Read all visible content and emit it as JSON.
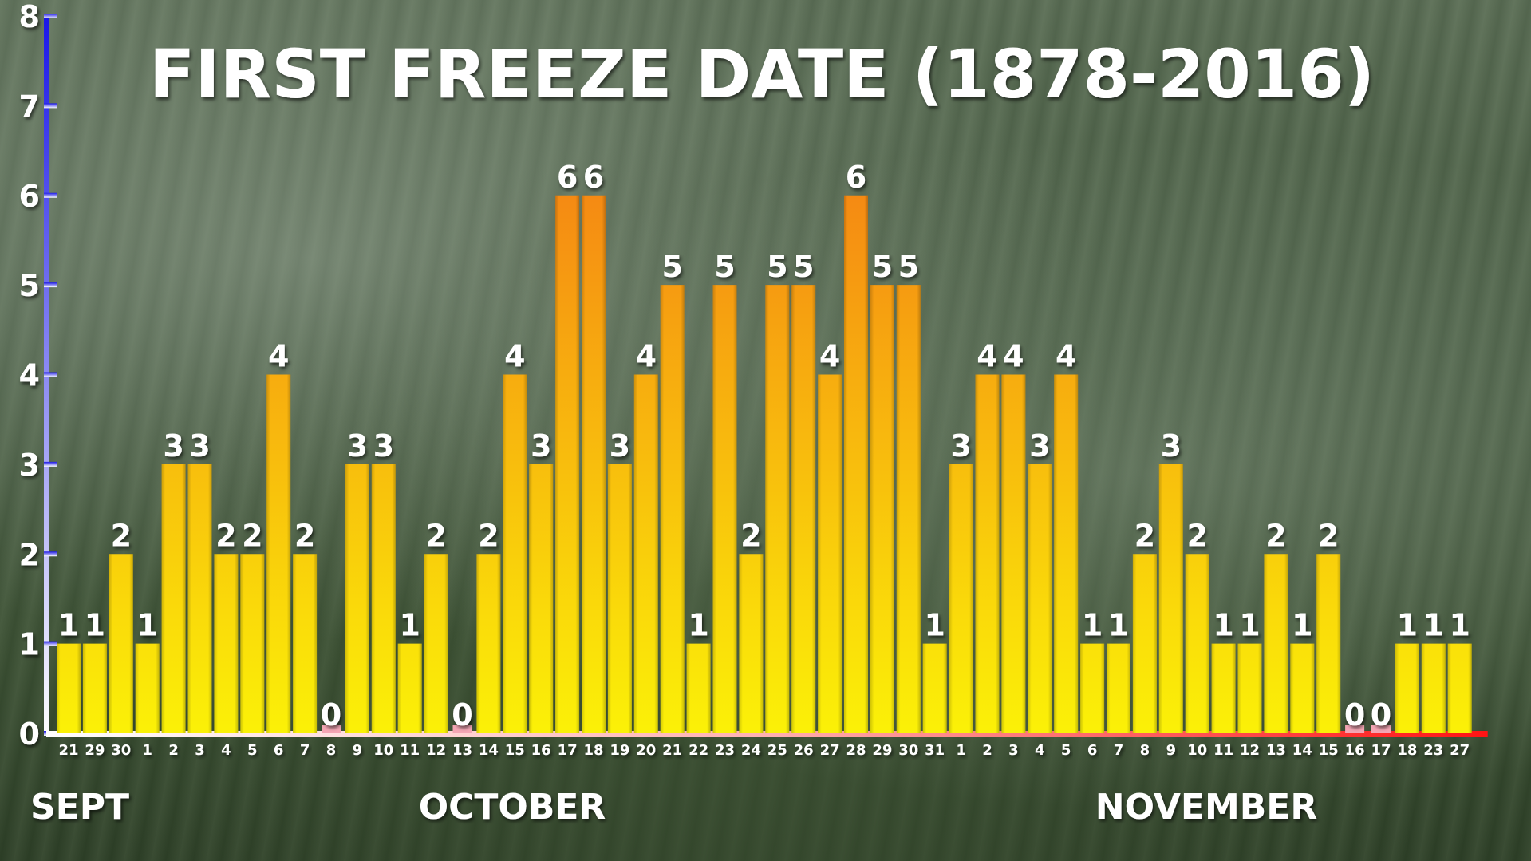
{
  "chart_data": {
    "type": "bar",
    "title": "FIRST FREEZE DATE (1878-2016)",
    "xlabel": "",
    "ylabel": "",
    "ylim": [
      0,
      8
    ],
    "yticks": [
      "0",
      "1",
      "2",
      "3",
      "4",
      "5",
      "6",
      "7",
      "8"
    ],
    "grid": false,
    "months": [
      {
        "label": "SEPT",
        "start_index": 0
      },
      {
        "label": "OCTOBER",
        "start_index": 4
      },
      {
        "label": "NOVEMBER",
        "start_index": 35
      }
    ],
    "categories": [
      "21",
      "29",
      "30",
      "1",
      "2",
      "3",
      "4",
      "5",
      "6",
      "7",
      "8",
      "9",
      "10",
      "11",
      "12",
      "13",
      "14",
      "15",
      "16",
      "17",
      "18",
      "19",
      "20",
      "21",
      "22",
      "23",
      "24",
      "25",
      "26",
      "27",
      "28",
      "29",
      "30",
      "31",
      "1",
      "2",
      "3",
      "4",
      "5",
      "6",
      "7",
      "8",
      "9",
      "10",
      "11",
      "12",
      "13",
      "14",
      "15",
      "16",
      "17",
      "18",
      "23",
      "27"
    ],
    "values": [
      1,
      1,
      2,
      1,
      3,
      3,
      2,
      2,
      4,
      2,
      0,
      3,
      3,
      1,
      2,
      0,
      2,
      4,
      3,
      6,
      6,
      3,
      4,
      5,
      1,
      5,
      2,
      5,
      5,
      4,
      6,
      5,
      5,
      1,
      3,
      4,
      4,
      3,
      4,
      1,
      1,
      2,
      3,
      2,
      1,
      1,
      2,
      1,
      2,
      0,
      0,
      1,
      1,
      1
    ],
    "value_labels": [
      "1",
      "1",
      "2",
      "1",
      "3",
      "3",
      "2",
      "2",
      "4",
      "2",
      "0",
      "3",
      "3",
      "1",
      "2",
      "0",
      "2",
      "4",
      "3",
      "6",
      "6",
      "3",
      "4",
      "5",
      "1",
      "5",
      "2",
      "5",
      "5",
      "4",
      "6",
      "5",
      "5",
      "1",
      "3",
      "4",
      "4",
      "3",
      "4",
      "1",
      "1",
      "2",
      "3",
      "2",
      "1",
      "1",
      "2",
      "1",
      "2",
      "0",
      "0",
      "1",
      "1",
      "1"
    ],
    "colors": {
      "bar_low": "#fbf107",
      "bar_high": "#f58a13",
      "zero_marker": "#f4a6b4",
      "axis_top": "#1a16e8",
      "axis_bottom": "#ffffff",
      "baseline_left": "#ffffff",
      "baseline_right": "#ff1414"
    }
  }
}
